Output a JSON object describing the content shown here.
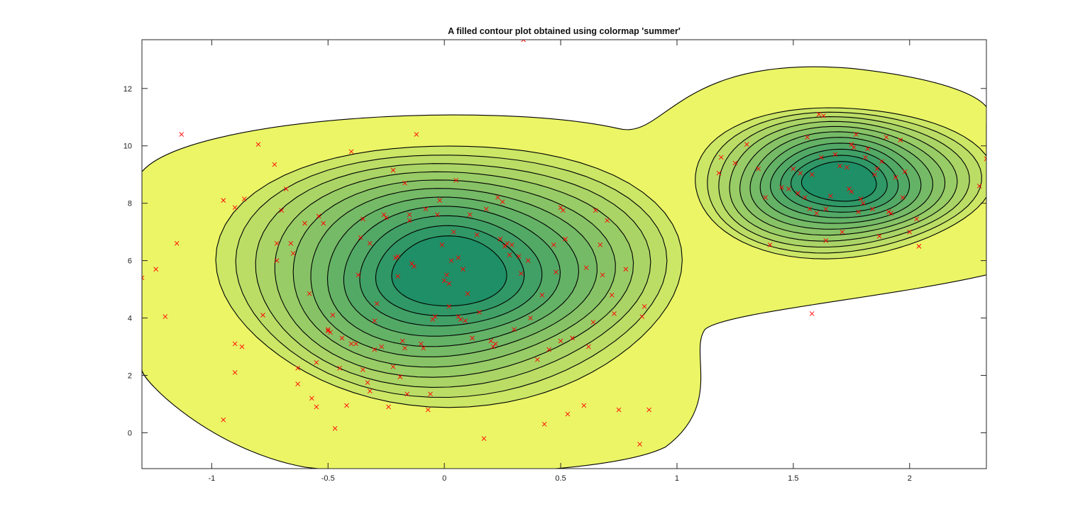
{
  "chart_data": {
    "type": "contour",
    "title": "A filled contour plot obtained using colormap 'summer'",
    "xlabel": "",
    "ylabel": "",
    "xlim": [
      -1.3,
      2.33
    ],
    "ylim": [
      -1.25,
      13.7
    ],
    "x_ticks": [
      -1,
      -0.5,
      0,
      0.5,
      1,
      1.5,
      2
    ],
    "x_tick_labels": [
      "-1",
      "-0.5",
      "0",
      "0.5",
      "1",
      "1.5",
      "2"
    ],
    "y_ticks": [
      0,
      2,
      4,
      6,
      8,
      10,
      12
    ],
    "y_tick_labels": [
      "0",
      "2",
      "4",
      "6",
      "8",
      "10",
      "12"
    ],
    "colormap": "summer",
    "colormap_endpoints": [
      "#008066",
      "#ffff66"
    ],
    "grid": false,
    "legend": "none",
    "line_color": "#000000",
    "marker_color": "#ff0000",
    "marker": "x",
    "clusters": [
      {
        "center": [
          0.02,
          5.6
        ],
        "levels": 11
      },
      {
        "center": [
          1.7,
          8.75
        ],
        "levels": 11
      }
    ],
    "points": [
      [
        -1.3,
        5.4
      ],
      [
        -1.24,
        5.7
      ],
      [
        -1.2,
        4.05
      ],
      [
        -1.15,
        6.6
      ],
      [
        -1.13,
        10.4
      ],
      [
        -0.95,
        8.1
      ],
      [
        -0.95,
        0.45
      ],
      [
        -0.9,
        7.85
      ],
      [
        -0.9,
        3.1
      ],
      [
        -0.9,
        2.1
      ],
      [
        -0.87,
        3.0
      ],
      [
        -0.86,
        8.15
      ],
      [
        -0.8,
        10.05
      ],
      [
        -0.78,
        4.1
      ],
      [
        -0.73,
        9.35
      ],
      [
        -0.72,
        6.6
      ],
      [
        -0.72,
        6.0
      ],
      [
        -0.7,
        7.75
      ],
      [
        -0.68,
        8.5
      ],
      [
        -0.66,
        6.6
      ],
      [
        -0.65,
        6.25
      ],
      [
        -0.63,
        2.25
      ],
      [
        -0.63,
        1.7
      ],
      [
        -0.6,
        7.3
      ],
      [
        -0.58,
        4.85
      ],
      [
        -0.57,
        1.2
      ],
      [
        -0.55,
        0.9
      ],
      [
        -0.55,
        2.45
      ],
      [
        -0.54,
        7.55
      ],
      [
        -0.52,
        7.3
      ],
      [
        -0.5,
        3.55
      ],
      [
        -0.5,
        3.6
      ],
      [
        -0.49,
        3.5
      ],
      [
        -0.48,
        4.1
      ],
      [
        -0.47,
        0.15
      ],
      [
        -0.45,
        2.25
      ],
      [
        -0.44,
        3.3
      ],
      [
        -0.42,
        0.95
      ],
      [
        -0.4,
        9.8
      ],
      [
        -0.4,
        3.1
      ],
      [
        -0.38,
        3.1
      ],
      [
        -0.37,
        5.5
      ],
      [
        -0.36,
        6.8
      ],
      [
        -0.35,
        7.45
      ],
      [
        -0.35,
        2.2
      ],
      [
        -0.33,
        1.75
      ],
      [
        -0.32,
        6.6
      ],
      [
        -0.32,
        1.45
      ],
      [
        -0.3,
        3.9
      ],
      [
        -0.3,
        2.9
      ],
      [
        -0.29,
        4.5
      ],
      [
        -0.27,
        3.0
      ],
      [
        -0.26,
        7.6
      ],
      [
        -0.25,
        7.5
      ],
      [
        -0.24,
        0.9
      ],
      [
        -0.22,
        9.15
      ],
      [
        -0.22,
        2.3
      ],
      [
        -0.21,
        6.1
      ],
      [
        -0.2,
        6.15
      ],
      [
        -0.2,
        5.45
      ],
      [
        -0.19,
        1.95
      ],
      [
        -0.18,
        3.2
      ],
      [
        -0.17,
        8.7
      ],
      [
        -0.17,
        2.95
      ],
      [
        -0.16,
        1.35
      ],
      [
        -0.15,
        7.6
      ],
      [
        -0.15,
        7.4
      ],
      [
        -0.14,
        5.9
      ],
      [
        -0.13,
        5.8
      ],
      [
        -0.12,
        10.4
      ],
      [
        -0.1,
        3.1
      ],
      [
        -0.09,
        2.95
      ],
      [
        -0.08,
        7.8
      ],
      [
        -0.07,
        0.8
      ],
      [
        -0.06,
        1.35
      ],
      [
        -0.05,
        3.95
      ],
      [
        -0.04,
        4.05
      ],
      [
        -0.03,
        7.6
      ],
      [
        -0.02,
        8.1
      ],
      [
        -0.01,
        6.55
      ],
      [
        0.0,
        5.3
      ],
      [
        0.01,
        5.5
      ],
      [
        0.02,
        5.2
      ],
      [
        0.02,
        4.4
      ],
      [
        0.03,
        6.0
      ],
      [
        0.04,
        7.0
      ],
      [
        0.05,
        8.8
      ],
      [
        0.06,
        6.1
      ],
      [
        0.06,
        4.05
      ],
      [
        0.07,
        3.95
      ],
      [
        0.08,
        5.7
      ],
      [
        0.09,
        3.9
      ],
      [
        0.1,
        4.85
      ],
      [
        0.11,
        7.6
      ],
      [
        0.12,
        3.3
      ],
      [
        0.14,
        6.9
      ],
      [
        0.15,
        4.2
      ],
      [
        0.17,
        -0.2
      ],
      [
        0.18,
        7.8
      ],
      [
        0.2,
        3.2
      ],
      [
        0.21,
        3.0
      ],
      [
        0.22,
        3.1
      ],
      [
        0.23,
        8.2
      ],
      [
        0.24,
        6.75
      ],
      [
        0.25,
        8.05
      ],
      [
        0.26,
        6.5
      ],
      [
        0.27,
        6.6
      ],
      [
        0.28,
        6.2
      ],
      [
        0.29,
        6.55
      ],
      [
        0.3,
        3.6
      ],
      [
        0.32,
        6.15
      ],
      [
        0.33,
        5.55
      ],
      [
        0.34,
        13.7
      ],
      [
        0.36,
        6.0
      ],
      [
        0.37,
        4.0
      ],
      [
        0.4,
        2.55
      ],
      [
        0.42,
        4.8
      ],
      [
        0.43,
        0.3
      ],
      [
        0.45,
        2.9
      ],
      [
        0.47,
        6.55
      ],
      [
        0.48,
        5.6
      ],
      [
        0.5,
        7.85
      ],
      [
        0.5,
        3.2
      ],
      [
        0.51,
        7.75
      ],
      [
        0.52,
        6.75
      ],
      [
        0.53,
        0.65
      ],
      [
        0.55,
        3.3
      ],
      [
        0.6,
        0.95
      ],
      [
        0.61,
        5.75
      ],
      [
        0.62,
        3.0
      ],
      [
        0.64,
        3.85
      ],
      [
        0.65,
        7.75
      ],
      [
        0.67,
        6.55
      ],
      [
        0.68,
        5.5
      ],
      [
        0.7,
        7.4
      ],
      [
        0.72,
        4.8
      ],
      [
        0.73,
        4.15
      ],
      [
        0.75,
        0.8
      ],
      [
        0.78,
        5.7
      ],
      [
        0.84,
        -0.4
      ],
      [
        0.85,
        4.05
      ],
      [
        0.86,
        4.4
      ],
      [
        0.88,
        0.8
      ],
      [
        1.18,
        9.05
      ],
      [
        1.19,
        9.6
      ],
      [
        1.25,
        9.4
      ],
      [
        1.3,
        10.05
      ],
      [
        1.35,
        9.2
      ],
      [
        1.38,
        8.2
      ],
      [
        1.4,
        6.55
      ],
      [
        1.45,
        8.55
      ],
      [
        1.48,
        8.5
      ],
      [
        1.5,
        9.2
      ],
      [
        1.52,
        8.35
      ],
      [
        1.53,
        9.05
      ],
      [
        1.55,
        8.2
      ],
      [
        1.56,
        10.3
      ],
      [
        1.57,
        7.8
      ],
      [
        1.58,
        9.0
      ],
      [
        1.58,
        4.15
      ],
      [
        1.6,
        7.65
      ],
      [
        1.61,
        11.1
      ],
      [
        1.62,
        9.6
      ],
      [
        1.63,
        11.05
      ],
      [
        1.64,
        7.8
      ],
      [
        1.64,
        6.7
      ],
      [
        1.66,
        8.25
      ],
      [
        1.68,
        9.7
      ],
      [
        1.7,
        9.3
      ],
      [
        1.71,
        7.0
      ],
      [
        1.73,
        9.25
      ],
      [
        1.74,
        8.5
      ],
      [
        1.75,
        10.05
      ],
      [
        1.75,
        8.4
      ],
      [
        1.76,
        9.95
      ],
      [
        1.77,
        10.4
      ],
      [
        1.78,
        7.7
      ],
      [
        1.79,
        8.15
      ],
      [
        1.8,
        8.0
      ],
      [
        1.81,
        9.6
      ],
      [
        1.82,
        9.9
      ],
      [
        1.84,
        7.8
      ],
      [
        1.85,
        9.0
      ],
      [
        1.86,
        9.2
      ],
      [
        1.87,
        6.85
      ],
      [
        1.88,
        9.45
      ],
      [
        1.9,
        10.3
      ],
      [
        1.91,
        7.7
      ],
      [
        1.92,
        7.65
      ],
      [
        1.94,
        8.9
      ],
      [
        1.96,
        10.2
      ],
      [
        1.97,
        8.2
      ],
      [
        1.98,
        9.1
      ],
      [
        2.0,
        7.0
      ],
      [
        2.03,
        7.45
      ],
      [
        2.04,
        6.5
      ],
      [
        2.3,
        8.6
      ],
      [
        2.33,
        9.55
      ]
    ]
  }
}
